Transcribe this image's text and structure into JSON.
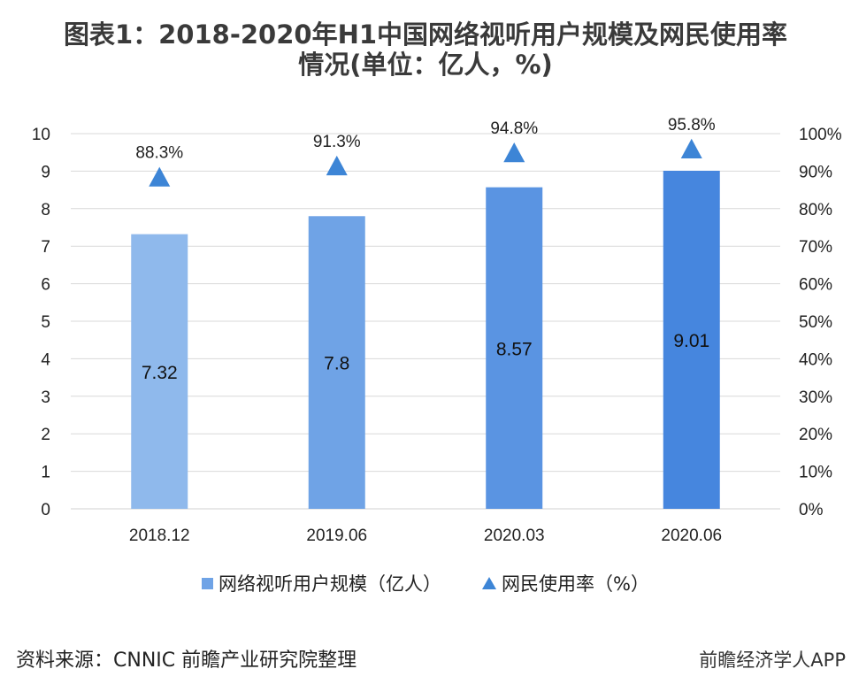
{
  "title_line1": "图表1：2018-2020年H1中国网络视听用户规模及网民使用率",
  "title_line2": "情况(单位：亿人，%)",
  "colors": {
    "bar_gradient": [
      "#8fb9ec",
      "#6fa3e6",
      "#5a94e2",
      "#4686de"
    ],
    "marker": "#3d85d6",
    "gridline": "#d9d9d9"
  },
  "chart_data": {
    "type": "bar",
    "categories": [
      "2018.12",
      "2019.06",
      "2020.03",
      "2020.06"
    ],
    "series": [
      {
        "name": "网络视听用户规模（亿人）",
        "type": "bar",
        "axis": "left",
        "values": [
          7.32,
          7.8,
          8.57,
          9.01
        ],
        "labels": [
          "7.32",
          "7.8",
          "8.57",
          "9.01"
        ]
      },
      {
        "name": "网民使用率（%）",
        "type": "scatter",
        "marker": "triangle",
        "axis": "right",
        "values": [
          88.3,
          91.3,
          94.8,
          95.8
        ],
        "labels": [
          "88.3%",
          "91.3%",
          "94.8%",
          "95.8%"
        ]
      }
    ],
    "y_left": {
      "lim": [
        0,
        10
      ],
      "ticks": [
        "0",
        "1",
        "2",
        "3",
        "4",
        "5",
        "6",
        "7",
        "8",
        "9",
        "10"
      ]
    },
    "y_right": {
      "lim": [
        0,
        100
      ],
      "ticks": [
        "0%",
        "10%",
        "20%",
        "30%",
        "40%",
        "50%",
        "60%",
        "70%",
        "80%",
        "90%",
        "100%"
      ]
    },
    "grid": true,
    "legend_position": "bottom"
  },
  "legend": {
    "bar_label": "网络视听用户规模（亿人）",
    "marker_label": "网民使用率（%）"
  },
  "source": "资料来源：CNNIC 前瞻产业研究院整理",
  "brand": "前瞻经济学人APP",
  "watermark": "前瞻产业研究院"
}
